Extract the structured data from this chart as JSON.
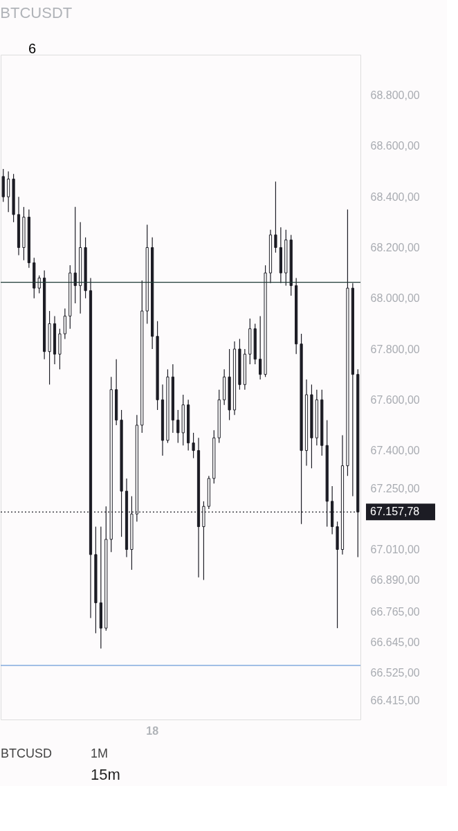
{
  "chart_data": {
    "type": "candlestick",
    "title": "BTCUSDT",
    "color": "#1c1c24",
    "categories": [
      null,
      null,
      null,
      null,
      null,
      null,
      null,
      null,
      null,
      null,
      null,
      null,
      null,
      null,
      null,
      null,
      null,
      null,
      null,
      null,
      null,
      null,
      null,
      null,
      null,
      null,
      null,
      null,
      null,
      "18",
      null,
      null,
      null,
      null,
      null,
      null,
      null,
      null,
      null,
      null,
      null,
      null,
      null,
      null,
      null,
      null,
      null,
      null,
      null,
      null,
      null,
      null,
      null,
      null,
      null,
      null,
      null,
      null,
      null,
      null,
      null,
      null,
      null,
      null,
      null,
      null,
      null,
      null,
      null,
      null
    ],
    "ohlc": [
      [
        68480,
        68510,
        68380,
        68400
      ],
      [
        68400,
        68500,
        68340,
        68470
      ],
      [
        68470,
        68490,
        68300,
        68330
      ],
      [
        68330,
        68400,
        68170,
        68200
      ],
      [
        68200,
        68360,
        68150,
        68320
      ],
      [
        68320,
        68350,
        68120,
        68140
      ],
      [
        68140,
        68160,
        68000,
        68040
      ],
      [
        68040,
        68090,
        68020,
        68080
      ],
      [
        68080,
        68110,
        67760,
        67790
      ],
      [
        67790,
        67950,
        67660,
        67900
      ],
      [
        67900,
        67930,
        67740,
        67780
      ],
      [
        67780,
        67880,
        67720,
        67860
      ],
      [
        67860,
        67960,
        67840,
        67930
      ],
      [
        67930,
        68130,
        67880,
        68100
      ],
      [
        68100,
        68360,
        67980,
        68050
      ],
      [
        68050,
        68300,
        67940,
        68200
      ],
      [
        68200,
        68240,
        68000,
        68030
      ],
      [
        68030,
        68080,
        66740,
        66990
      ],
      [
        66990,
        67100,
        66680,
        66800
      ],
      [
        66800,
        67100,
        66620,
        66700
      ],
      [
        66700,
        67180,
        66690,
        67050
      ],
      [
        67050,
        67690,
        67000,
        67640
      ],
      [
        67640,
        67760,
        67500,
        67520
      ],
      [
        67520,
        67560,
        67060,
        67240
      ],
      [
        67240,
        67290,
        66980,
        67010
      ],
      [
        67010,
        67220,
        66930,
        67150
      ],
      [
        67150,
        67540,
        67120,
        67500
      ],
      [
        67500,
        68070,
        67470,
        67950
      ],
      [
        67950,
        68290,
        67900,
        68200
      ],
      [
        68200,
        68240,
        67800,
        67850
      ],
      [
        67850,
        67910,
        67560,
        67600
      ],
      [
        67600,
        67660,
        67380,
        67440
      ],
      [
        67440,
        67720,
        67430,
        67690
      ],
      [
        67690,
        67740,
        67470,
        67520
      ],
      [
        67520,
        67560,
        67430,
        67470
      ],
      [
        67470,
        67620,
        67420,
        67580
      ],
      [
        67580,
        67600,
        67400,
        67430
      ],
      [
        67430,
        67470,
        67370,
        67400
      ],
      [
        67400,
        67450,
        66900,
        67100
      ],
      [
        67100,
        67200,
        66890,
        67180
      ],
      [
        67180,
        67300,
        67170,
        67290
      ],
      [
        67290,
        67480,
        67270,
        67450
      ],
      [
        67450,
        67640,
        67430,
        67600
      ],
      [
        67600,
        67720,
        67580,
        67690
      ],
      [
        67690,
        67800,
        67520,
        67560
      ],
      [
        67560,
        67830,
        67540,
        67800
      ],
      [
        67800,
        67840,
        67640,
        67660
      ],
      [
        67660,
        67800,
        67640,
        67780
      ],
      [
        67780,
        67920,
        67740,
        67880
      ],
      [
        67880,
        67900,
        67740,
        67760
      ],
      [
        67760,
        67930,
        67680,
        67700
      ],
      [
        67700,
        68130,
        67690,
        68100
      ],
      [
        68100,
        68270,
        68060,
        68250
      ],
      [
        68250,
        68460,
        68180,
        68200
      ],
      [
        68200,
        68280,
        68060,
        68100
      ],
      [
        68100,
        68270,
        68050,
        68230
      ],
      [
        68230,
        68250,
        68010,
        68050
      ],
      [
        68050,
        68080,
        67780,
        67820
      ],
      [
        67820,
        67860,
        67110,
        67400
      ],
      [
        67400,
        67680,
        67340,
        67620
      ],
      [
        67620,
        67660,
        67330,
        67450
      ],
      [
        67450,
        67640,
        67420,
        67600
      ],
      [
        67600,
        67640,
        67380,
        67420
      ],
      [
        67420,
        67520,
        67100,
        67200
      ],
      [
        67200,
        67260,
        67070,
        67100
      ],
      [
        67100,
        67120,
        66700,
        67010
      ],
      [
        67010,
        67460,
        66990,
        67340
      ],
      [
        67340,
        68350,
        67300,
        68040
      ],
      [
        68040,
        68060,
        67220,
        67700
      ],
      [
        67700,
        67720,
        66980,
        67157.78
      ]
    ],
    "ylim": [
      66340,
      68960
    ],
    "yticks": [
      {
        "value": 68800,
        "label": "68.800,00"
      },
      {
        "value": 68600,
        "label": "68.600,00"
      },
      {
        "value": 68400,
        "label": "68.400,00"
      },
      {
        "value": 68200,
        "label": "68.200,00"
      },
      {
        "value": 68000,
        "label": "68.000,00"
      },
      {
        "value": 67800,
        "label": "67.800,00"
      },
      {
        "value": 67600,
        "label": "67.600,00"
      },
      {
        "value": 67400,
        "label": "67.400,00"
      },
      {
        "value": 67250,
        "label": "67.250,00"
      },
      {
        "value": 67010,
        "label": "67.010,00"
      },
      {
        "value": 66890,
        "label": "66.890,00"
      },
      {
        "value": 66765,
        "label": "66.765,00"
      },
      {
        "value": 66645,
        "label": "66.645,00"
      },
      {
        "value": 66525,
        "label": "66.525,00"
      },
      {
        "value": 66415,
        "label": "66.415,00"
      }
    ],
    "ref_lines": [
      {
        "axis": "y",
        "value": 68063,
        "color": "#1e3a34",
        "line_style": "solid"
      },
      {
        "axis": "y",
        "value": 66553,
        "color": "#6a9bd8",
        "line_style": "solid"
      },
      {
        "axis": "y",
        "value": 67157.78,
        "color": "#1c1c24",
        "line_style": "dotted",
        "label": "67.157,78"
      }
    ],
    "annotations": [
      "6",
      "BTCUSD",
      "1M",
      "15m"
    ],
    "grid": false
  }
}
